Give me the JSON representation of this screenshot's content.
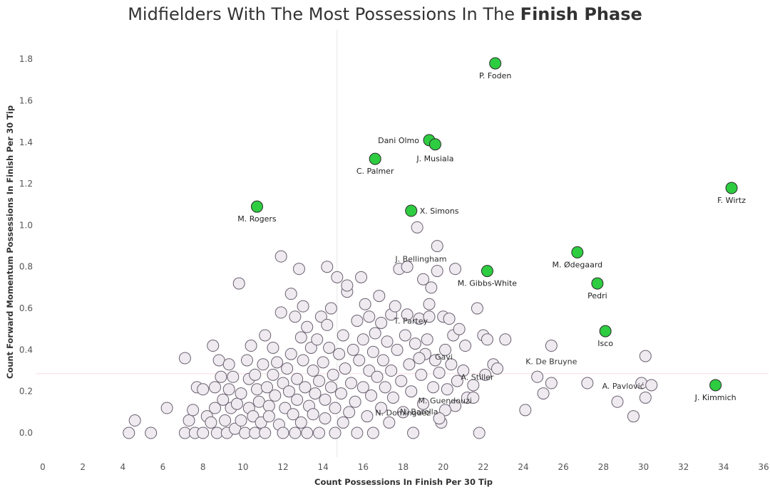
{
  "chart_data": {
    "type": "scatter",
    "title": {
      "prefix": "Midfielders With The Most Possessions In The ",
      "bold": "Finish Phase"
    },
    "xlabel": "Count Possessions In Finish Per 30 Tip",
    "ylabel": "Count Forward Momentum Possessions In Finish Per 30 Tip",
    "xlim": [
      0,
      36
    ],
    "ylim": [
      -0.12,
      1.9
    ],
    "x_ticks": [
      0,
      2,
      4,
      6,
      8,
      10,
      12,
      14,
      16,
      18,
      20,
      22,
      24,
      26,
      28,
      30,
      32,
      34,
      36
    ],
    "x_tick_labels": [
      "0",
      "2",
      "4",
      "6",
      "8",
      "10",
      "12",
      "14",
      "16",
      "18",
      "20",
      "22",
      "24",
      "26",
      "28",
      "30",
      "32",
      "34",
      "36"
    ],
    "y_ticks": [
      0,
      0.2,
      0.4,
      0.6,
      0.8,
      1.0,
      1.2,
      1.4,
      1.6,
      1.8
    ],
    "y_tick_labels": [
      "0.0",
      "0.2",
      "0.4",
      "0.6",
      "0.8",
      "1.0",
      "1.2",
      "1.4",
      "1.6",
      "1.8"
    ],
    "reference_lines": {
      "x_mean": 14.7,
      "y_mean": 0.285
    },
    "colors": {
      "highlight": "#2ecc40",
      "background_point": "#eeeaf0",
      "point_stroke": "#6b6070",
      "title_text": "#333333",
      "axis_text": "#555555",
      "ref_line_x": "#e6e6e6",
      "ref_line_y": "#f7dbe0"
    },
    "highlighted": [
      {
        "name": "P. Foden",
        "x": 22.6,
        "y": 1.78
      },
      {
        "name": "Dani Olmo",
        "x": 19.3,
        "y": 1.41
      },
      {
        "name": "J. Musiala",
        "x": 19.6,
        "y": 1.39
      },
      {
        "name": "C. Palmer",
        "x": 16.6,
        "y": 1.32
      },
      {
        "name": "F. Wirtz",
        "x": 34.4,
        "y": 1.18
      },
      {
        "name": "M. Rogers",
        "x": 10.7,
        "y": 1.09
      },
      {
        "name": "X. Simons",
        "x": 18.4,
        "y": 1.07
      },
      {
        "name": "M. Ødegaard",
        "x": 26.7,
        "y": 0.87
      },
      {
        "name": "M. Gibbs-White",
        "x": 22.2,
        "y": 0.78
      },
      {
        "name": "Pedri",
        "x": 27.7,
        "y": 0.72
      },
      {
        "name": "Isco",
        "x": 28.1,
        "y": 0.49
      },
      {
        "name": "J. Kimmich",
        "x": 33.6,
        "y": 0.23
      }
    ],
    "labeled_background": [
      {
        "name": "J. Bellingham",
        "x": 20.6,
        "y": 0.79
      },
      {
        "name": "T. Partey",
        "x": 19.3,
        "y": 0.56
      },
      {
        "name": "Gavi",
        "x": 18.8,
        "y": 0.36
      },
      {
        "name": "K. De Bruyne",
        "x": 25.4,
        "y": 0.42
      },
      {
        "name": "A. Stiller",
        "x": 22.7,
        "y": 0.31
      },
      {
        "name": "A. Pavlović",
        "x": 30.4,
        "y": 0.23
      },
      {
        "name": "M. Guendouzi",
        "x": 21.5,
        "y": 0.17
      },
      {
        "name": "N. Barella",
        "x": 20.1,
        "y": 0.11
      },
      {
        "name": "N. Dominguez",
        "x": 19.8,
        "y": 0.07
      }
    ],
    "others": [
      [
        4.3,
        0.0
      ],
      [
        4.6,
        0.06
      ],
      [
        5.4,
        0.0
      ],
      [
        6.2,
        0.12
      ],
      [
        7.1,
        0.36
      ],
      [
        7.1,
        0.0
      ],
      [
        7.3,
        0.06
      ],
      [
        7.5,
        0.11
      ],
      [
        7.6,
        0.0
      ],
      [
        7.7,
        0.22
      ],
      [
        8.0,
        0.21
      ],
      [
        8.0,
        0.0
      ],
      [
        8.2,
        0.08
      ],
      [
        8.4,
        0.05
      ],
      [
        8.5,
        0.42
      ],
      [
        8.6,
        0.22
      ],
      [
        8.6,
        0.12
      ],
      [
        8.7,
        0.0
      ],
      [
        8.8,
        0.35
      ],
      [
        8.9,
        0.27
      ],
      [
        9.0,
        0.16
      ],
      [
        9.1,
        0.06
      ],
      [
        9.2,
        0.0
      ],
      [
        9.3,
        0.33
      ],
      [
        9.3,
        0.21
      ],
      [
        9.4,
        0.12
      ],
      [
        9.5,
        0.27
      ],
      [
        9.6,
        0.02
      ],
      [
        9.7,
        0.14
      ],
      [
        9.8,
        0.72
      ],
      [
        9.9,
        0.19
      ],
      [
        9.9,
        0.06
      ],
      [
        10.1,
        0.0
      ],
      [
        10.2,
        0.35
      ],
      [
        10.3,
        0.26
      ],
      [
        10.3,
        0.12
      ],
      [
        10.4,
        0.42
      ],
      [
        10.5,
        0.08
      ],
      [
        10.6,
        0.0
      ],
      [
        10.6,
        0.28
      ],
      [
        10.7,
        0.21
      ],
      [
        10.8,
        0.15
      ],
      [
        10.9,
        0.05
      ],
      [
        11.0,
        0.33
      ],
      [
        11.1,
        0.47
      ],
      [
        11.1,
        0.0
      ],
      [
        11.2,
        0.22
      ],
      [
        11.3,
        0.13
      ],
      [
        11.3,
        0.08
      ],
      [
        11.5,
        0.28
      ],
      [
        11.5,
        0.41
      ],
      [
        11.6,
        0.18
      ],
      [
        11.7,
        0.34
      ],
      [
        11.8,
        0.04
      ],
      [
        11.9,
        0.85
      ],
      [
        11.9,
        0.58
      ],
      [
        12.0,
        0.24
      ],
      [
        12.0,
        0.0
      ],
      [
        12.1,
        0.12
      ],
      [
        12.2,
        0.31
      ],
      [
        12.3,
        0.2
      ],
      [
        12.4,
        0.67
      ],
      [
        12.4,
        0.38
      ],
      [
        12.5,
        0.09
      ],
      [
        12.6,
        0.0
      ],
      [
        12.6,
        0.56
      ],
      [
        12.7,
        0.26
      ],
      [
        12.7,
        0.16
      ],
      [
        12.8,
        0.79
      ],
      [
        12.9,
        0.46
      ],
      [
        12.9,
        0.05
      ],
      [
        13.0,
        0.35
      ],
      [
        13.0,
        0.61
      ],
      [
        13.1,
        0.22
      ],
      [
        13.2,
        0.51
      ],
      [
        13.2,
        0.0
      ],
      [
        13.3,
        0.13
      ],
      [
        13.4,
        0.41
      ],
      [
        13.5,
        0.3
      ],
      [
        13.5,
        0.09
      ],
      [
        13.6,
        0.19
      ],
      [
        13.7,
        0.45
      ],
      [
        13.8,
        0.0
      ],
      [
        13.8,
        0.25
      ],
      [
        13.9,
        0.56
      ],
      [
        14.0,
        0.34
      ],
      [
        14.1,
        0.07
      ],
      [
        14.1,
        0.16
      ],
      [
        14.2,
        0.8
      ],
      [
        14.2,
        0.52
      ],
      [
        14.3,
        0.41
      ],
      [
        14.4,
        0.22
      ],
      [
        14.4,
        0.6
      ],
      [
        14.5,
        0.28
      ],
      [
        14.6,
        0.12
      ],
      [
        14.6,
        0.0
      ],
      [
        14.7,
        0.75
      ],
      [
        14.8,
        0.38
      ],
      [
        14.9,
        0.19
      ],
      [
        15.0,
        0.47
      ],
      [
        15.0,
        0.05
      ],
      [
        15.1,
        0.31
      ],
      [
        15.2,
        0.68
      ],
      [
        15.2,
        0.71
      ],
      [
        15.3,
        0.1
      ],
      [
        15.4,
        0.24
      ],
      [
        15.5,
        0.4
      ],
      [
        15.6,
        0.15
      ],
      [
        15.7,
        0.54
      ],
      [
        15.7,
        0.0
      ],
      [
        15.8,
        0.35
      ],
      [
        15.9,
        0.75
      ],
      [
        16.0,
        0.22
      ],
      [
        16.0,
        0.45
      ],
      [
        16.1,
        0.62
      ],
      [
        16.2,
        0.08
      ],
      [
        16.3,
        0.3
      ],
      [
        16.3,
        0.56
      ],
      [
        16.4,
        0.18
      ],
      [
        16.5,
        0.0
      ],
      [
        16.5,
        0.39
      ],
      [
        16.6,
        0.48
      ],
      [
        16.7,
        0.27
      ],
      [
        16.8,
        0.66
      ],
      [
        16.9,
        0.12
      ],
      [
        16.9,
        0.53
      ],
      [
        17.0,
        0.35
      ],
      [
        17.1,
        0.22
      ],
      [
        17.2,
        0.44
      ],
      [
        17.3,
        0.05
      ],
      [
        17.4,
        0.57
      ],
      [
        17.4,
        0.3
      ],
      [
        17.5,
        0.17
      ],
      [
        17.6,
        0.61
      ],
      [
        17.7,
        0.4
      ],
      [
        17.8,
        0.79
      ],
      [
        17.9,
        0.25
      ],
      [
        18.0,
        0.1
      ],
      [
        18.1,
        0.47
      ],
      [
        18.2,
        0.57
      ],
      [
        18.2,
        0.8
      ],
      [
        18.3,
        0.33
      ],
      [
        18.4,
        0.2
      ],
      [
        18.5,
        0.0
      ],
      [
        18.6,
        0.43
      ],
      [
        18.7,
        0.99
      ],
      [
        18.8,
        0.55
      ],
      [
        18.9,
        0.28
      ],
      [
        19.0,
        0.74
      ],
      [
        19.0,
        0.14
      ],
      [
        19.1,
        0.38
      ],
      [
        19.2,
        0.45
      ],
      [
        19.3,
        0.62
      ],
      [
        19.4,
        0.7
      ],
      [
        19.5,
        0.22
      ],
      [
        19.6,
        0.35
      ],
      [
        19.7,
        0.9
      ],
      [
        19.7,
        0.78
      ],
      [
        19.8,
        0.29
      ],
      [
        19.9,
        0.05
      ],
      [
        20.0,
        0.56
      ],
      [
        20.1,
        0.4
      ],
      [
        20.2,
        0.21
      ],
      [
        20.3,
        0.55
      ],
      [
        20.4,
        0.33
      ],
      [
        20.5,
        0.47
      ],
      [
        20.6,
        0.13
      ],
      [
        20.7,
        0.25
      ],
      [
        20.8,
        0.5
      ],
      [
        21.0,
        0.3
      ],
      [
        21.1,
        0.42
      ],
      [
        21.2,
        0.17
      ],
      [
        21.5,
        0.23
      ],
      [
        21.7,
        0.6
      ],
      [
        21.8,
        0.0
      ],
      [
        22.0,
        0.47
      ],
      [
        22.1,
        0.28
      ],
      [
        22.2,
        0.45
      ],
      [
        22.5,
        0.33
      ],
      [
        23.1,
        0.45
      ],
      [
        24.1,
        0.11
      ],
      [
        24.7,
        0.27
      ],
      [
        25.0,
        0.19
      ],
      [
        25.4,
        0.24
      ],
      [
        27.2,
        0.24
      ],
      [
        28.7,
        0.15
      ],
      [
        29.5,
        0.08
      ],
      [
        29.9,
        0.24
      ],
      [
        30.1,
        0.37
      ],
      [
        30.1,
        0.17
      ]
    ]
  }
}
